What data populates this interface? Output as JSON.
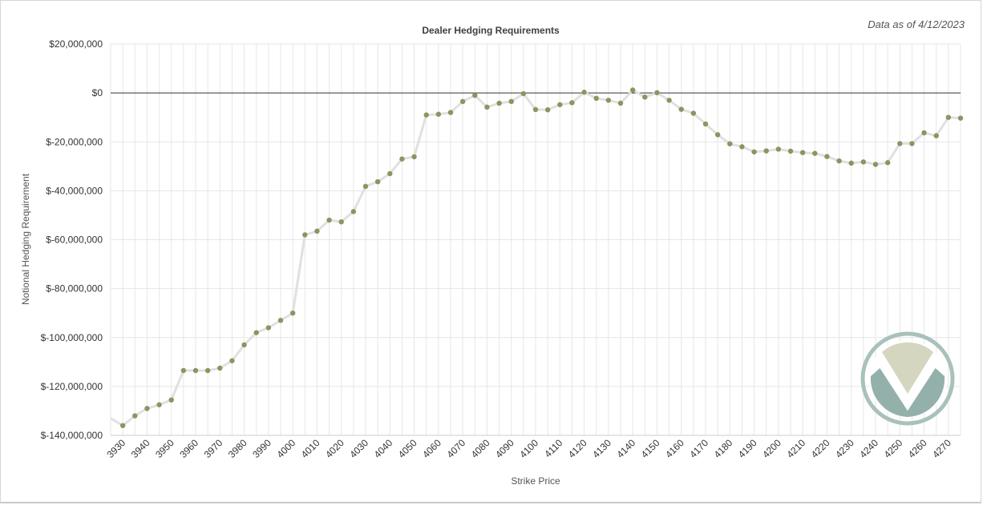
{
  "header": {
    "as_of": "Data as of 4/12/2023"
  },
  "colors": {
    "line": "#e0e0e0",
    "marker": "#8c9460",
    "grid": "#e6e6e6",
    "zero_line": "#333333",
    "logo_ring": "#a9c1bc",
    "logo_light": "#d5d6c0",
    "logo_teal": "#93b1aa"
  },
  "icons": {
    "logo": "v-logo-watermark-icon"
  },
  "chart_data": {
    "type": "line",
    "title": "Dealer Hedging Requirements",
    "xlabel": "Strike Price",
    "ylabel": "Notional Hedging Requirement",
    "ylim": [
      -140000000,
      20000000
    ],
    "yticks": [
      20000000,
      0,
      -20000000,
      -40000000,
      -60000000,
      -80000000,
      -100000000,
      -120000000,
      -140000000
    ],
    "ytick_labels": [
      "$20,000,000",
      "$0",
      "$-20,000,000",
      "$-40,000,000",
      "$-60,000,000",
      "$-80,000,000",
      "$-100,000,000",
      "$-120,000,000",
      "$-140,000,000"
    ],
    "xlim": [
      3925,
      4275
    ],
    "xtick_labels": [
      "3930",
      "3940",
      "3950",
      "3960",
      "3970",
      "3980",
      "3990",
      "4000",
      "4010",
      "4020",
      "4030",
      "4040",
      "4050",
      "4060",
      "4070",
      "4080",
      "4090",
      "4100",
      "4110",
      "4120",
      "4130",
      "4140",
      "4150",
      "4160",
      "4170",
      "4180",
      "4190",
      "4200",
      "4210",
      "4220",
      "4230",
      "4240",
      "4250",
      "4260",
      "4270"
    ],
    "grid": true,
    "legend": "none",
    "series": [
      {
        "x": [
          3925,
          3930,
          3935,
          3940,
          3945,
          3950,
          3955,
          3960,
          3965,
          3970,
          3975,
          3980,
          3985,
          3990,
          3995,
          4000,
          4005,
          4010,
          4015,
          4020,
          4025,
          4030,
          4035,
          4040,
          4045,
          4050,
          4055,
          4060,
          4065,
          4070,
          4075,
          4080,
          4085,
          4090,
          4095,
          4100,
          4105,
          4110,
          4115,
          4120,
          4125,
          4130,
          4135,
          4140,
          4145,
          4150,
          4155,
          4160,
          4165,
          4170,
          4175,
          4180,
          4185,
          4190,
          4195,
          4200,
          4205,
          4210,
          4215,
          4220,
          4225,
          4230,
          4235,
          4240,
          4245,
          4250,
          4255,
          4260,
          4265,
          4270,
          4275
        ],
        "y": [
          -133000000,
          -136000000,
          -132000000,
          -129000000,
          -127500000,
          -125500000,
          -113500000,
          -113500000,
          -113500000,
          -112500000,
          -109500000,
          -103000000,
          -98000000,
          -96000000,
          -93000000,
          -90000000,
          -58000000,
          -56500000,
          -52000000,
          -52700000,
          -48500000,
          -38200000,
          -36300000,
          -33000000,
          -27000000,
          -26100000,
          -9000000,
          -8700000,
          -8000000,
          -3500000,
          -1000000,
          -5800000,
          -4200000,
          -3500000,
          -300000,
          -6800000,
          -6900000,
          -4800000,
          -4000000,
          300000,
          -2200000,
          -3000000,
          -4200000,
          1200000,
          -1700000,
          100000,
          -3000000,
          -6700000,
          -8300000,
          -12700000,
          -17100000,
          -20800000,
          -22000000,
          -24100000,
          -23700000,
          -23000000,
          -23800000,
          -24400000,
          -24700000,
          -26000000,
          -27800000,
          -28700000,
          -28200000,
          -29200000,
          -28500000,
          -20700000,
          -20700000,
          -16300000,
          -17500000,
          -10000000,
          -10300000
        ],
        "markers": [
          false,
          true,
          true,
          true,
          true,
          true,
          true,
          true,
          true,
          true,
          true,
          true,
          true,
          true,
          true,
          true,
          true,
          true,
          true,
          true,
          true,
          true,
          true,
          true,
          true,
          true,
          true,
          true,
          true,
          true,
          true,
          true,
          true,
          true,
          true,
          true,
          true,
          true,
          true,
          true,
          true,
          true,
          true,
          true,
          true,
          true,
          true,
          true,
          true,
          true,
          true,
          true,
          true,
          true,
          true,
          true,
          true,
          true,
          true,
          true,
          true,
          true,
          true,
          true,
          true,
          true,
          true,
          true,
          true,
          true,
          true
        ]
      }
    ]
  }
}
